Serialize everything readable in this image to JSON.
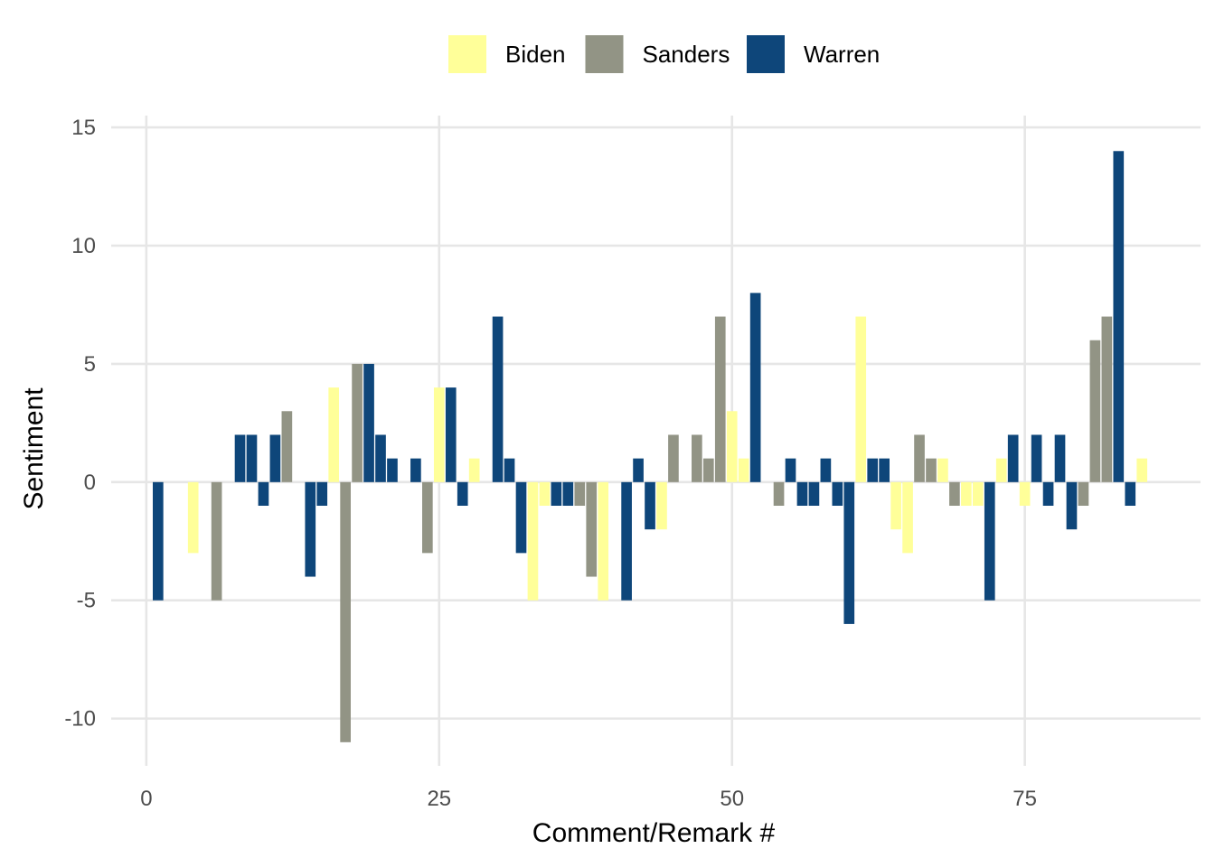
{
  "chart_data": {
    "type": "bar",
    "title": "",
    "xlabel": "Comment/Remark #",
    "ylabel": "Sentiment",
    "xlim": [
      -3,
      90
    ],
    "ylim": [
      -12,
      15.5
    ],
    "x_ticks": [
      0,
      25,
      50,
      75
    ],
    "y_ticks": [
      -10,
      -5,
      0,
      5,
      10,
      15
    ],
    "grid": true,
    "legend_position": "top",
    "series": [
      {
        "name": "Biden",
        "color": "#FFFF99",
        "points": [
          {
            "x": 4,
            "y": -3
          },
          {
            "x": 16,
            "y": 4
          },
          {
            "x": 25,
            "y": 4
          },
          {
            "x": 28,
            "y": 1
          },
          {
            "x": 33,
            "y": -5
          },
          {
            "x": 34,
            "y": -1
          },
          {
            "x": 39,
            "y": -5
          },
          {
            "x": 44,
            "y": -2
          },
          {
            "x": 50,
            "y": 3
          },
          {
            "x": 51,
            "y": 1
          },
          {
            "x": 61,
            "y": 7
          },
          {
            "x": 64,
            "y": -2
          },
          {
            "x": 65,
            "y": -3
          },
          {
            "x": 68,
            "y": 1
          },
          {
            "x": 70,
            "y": -1
          },
          {
            "x": 71,
            "y": -1
          },
          {
            "x": 73,
            "y": 1
          },
          {
            "x": 75,
            "y": -1
          },
          {
            "x": 85,
            "y": 1
          }
        ]
      },
      {
        "name": "Sanders",
        "color": "#929485",
        "points": [
          {
            "x": 6,
            "y": -5
          },
          {
            "x": 12,
            "y": 3
          },
          {
            "x": 17,
            "y": -11
          },
          {
            "x": 18,
            "y": 5
          },
          {
            "x": 24,
            "y": -3
          },
          {
            "x": 37,
            "y": -1
          },
          {
            "x": 38,
            "y": -4
          },
          {
            "x": 45,
            "y": 2
          },
          {
            "x": 47,
            "y": 2
          },
          {
            "x": 48,
            "y": 1
          },
          {
            "x": 49,
            "y": 7
          },
          {
            "x": 54,
            "y": -1
          },
          {
            "x": 66,
            "y": 2
          },
          {
            "x": 67,
            "y": 1
          },
          {
            "x": 69,
            "y": -1
          },
          {
            "x": 80,
            "y": -1
          },
          {
            "x": 81,
            "y": 6
          },
          {
            "x": 82,
            "y": 7
          }
        ]
      },
      {
        "name": "Warren",
        "color": "#0E467A",
        "points": [
          {
            "x": 1,
            "y": -5
          },
          {
            "x": 8,
            "y": 2
          },
          {
            "x": 9,
            "y": 2
          },
          {
            "x": 10,
            "y": -1
          },
          {
            "x": 11,
            "y": 2
          },
          {
            "x": 14,
            "y": -4
          },
          {
            "x": 15,
            "y": -1
          },
          {
            "x": 19,
            "y": 5
          },
          {
            "x": 20,
            "y": 2
          },
          {
            "x": 21,
            "y": 1
          },
          {
            "x": 23,
            "y": 1
          },
          {
            "x": 26,
            "y": 4
          },
          {
            "x": 27,
            "y": -1
          },
          {
            "x": 30,
            "y": 7
          },
          {
            "x": 31,
            "y": 1
          },
          {
            "x": 32,
            "y": -3
          },
          {
            "x": 35,
            "y": -1
          },
          {
            "x": 36,
            "y": -1
          },
          {
            "x": 41,
            "y": -5
          },
          {
            "x": 42,
            "y": 1
          },
          {
            "x": 43,
            "y": -2
          },
          {
            "x": 52,
            "y": 8
          },
          {
            "x": 55,
            "y": 1
          },
          {
            "x": 56,
            "y": -1
          },
          {
            "x": 57,
            "y": -1
          },
          {
            "x": 58,
            "y": 1
          },
          {
            "x": 59,
            "y": -1
          },
          {
            "x": 60,
            "y": -6
          },
          {
            "x": 62,
            "y": 1
          },
          {
            "x": 63,
            "y": 1
          },
          {
            "x": 72,
            "y": -5
          },
          {
            "x": 74,
            "y": 2
          },
          {
            "x": 76,
            "y": 2
          },
          {
            "x": 77,
            "y": -1
          },
          {
            "x": 78,
            "y": 2
          },
          {
            "x": 79,
            "y": -2
          },
          {
            "x": 83,
            "y": 14
          },
          {
            "x": 84,
            "y": -1
          }
        ]
      }
    ]
  }
}
